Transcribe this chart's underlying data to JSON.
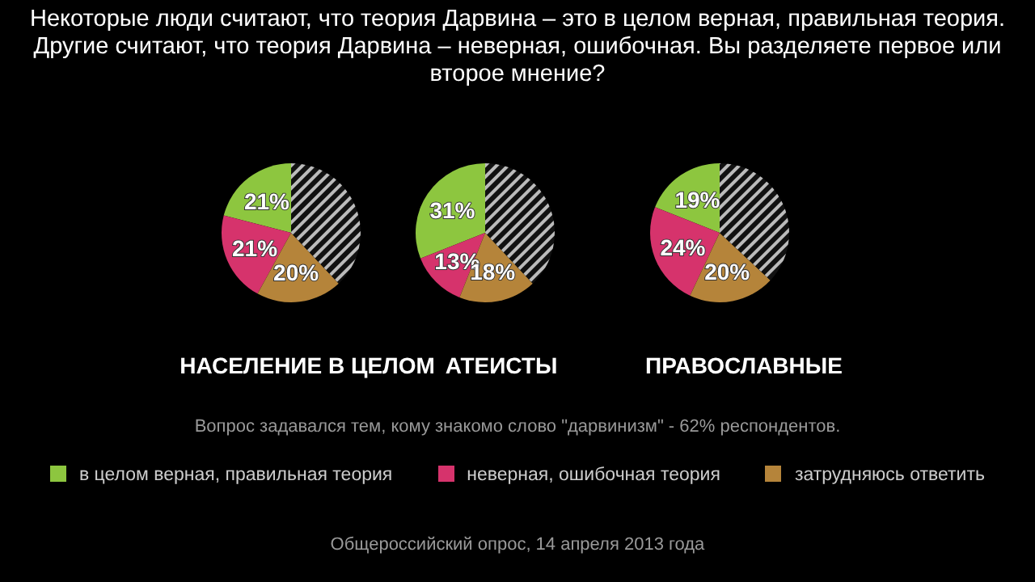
{
  "chart_data": [
    {
      "type": "other",
      "title": "Некоторые люди считают, что  теория Дарвина –  это в целом верная, правильная теория. Другие считают,  что теория Дарвина –  неверная, ошибочная. Вы  разделяете первое или второе мнение?",
      "annotations": [
        "Вопрос задавался тем, кому знакомо слово \"дарвинизм\" - 62% респондентов.",
        "Общероссийский опрос, 14 апреля 2013 года"
      ]
    },
    {
      "type": "pie",
      "title": "НАСЕЛЕНИЕ В ЦЕЛОМ",
      "categories": [
        "в целом верная, правильная теория",
        "неверная, ошибочная теория",
        "затрудняюсь ответить",
        null
      ],
      "values": [
        21,
        21,
        20,
        38
      ],
      "value_labels": [
        "21%",
        "21%",
        "20%",
        null
      ],
      "colors": [
        "#8dc63f",
        "#d6336c",
        "#b5843a",
        "#111111"
      ],
      "legend": "bottom"
    },
    {
      "type": "pie",
      "title": "АТЕИСТЫ",
      "categories": [
        null,
        null,
        null,
        null
      ],
      "values": [
        31,
        13,
        18,
        38
      ],
      "value_labels": [
        "31%",
        "13%",
        "18%",
        null
      ],
      "colors": [
        "#8dc63f",
        "#d6336c",
        "#b5843a",
        "#111111"
      ]
    },
    {
      "type": "pie",
      "title": "ПРАВОСЛАВНЫЕ",
      "categories": [
        null,
        null,
        null,
        null
      ],
      "values": [
        19,
        24,
        20,
        37
      ],
      "value_labels": [
        "19%",
        "24%",
        "20%",
        null
      ],
      "colors": [
        "#8dc63f",
        "#d6336c",
        "#b5843a",
        "#111111"
      ]
    }
  ]
}
